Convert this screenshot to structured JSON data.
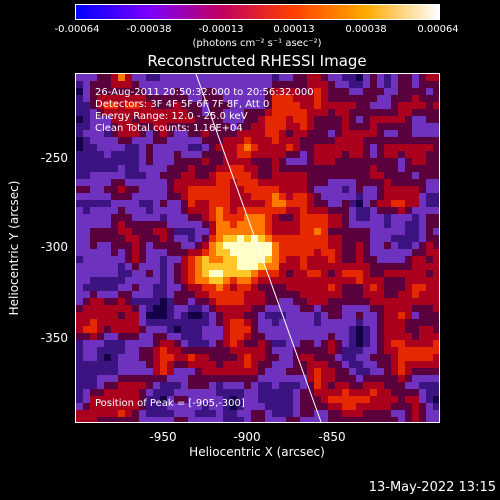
{
  "colorbar": {
    "ticks": [
      "-0.00064",
      "-0.00038",
      "-0.00013",
      "0.00013",
      "0.00038",
      "0.00064"
    ],
    "units_label": "(photons cm⁻² s⁻¹ asec⁻²)",
    "colors": [
      "#0000ff",
      "#7a00ff",
      "#c00060",
      "#ff4000",
      "#ffaa00",
      "#ffffff"
    ]
  },
  "title": "Reconstructed RHESSI Image",
  "info": {
    "line1": "26-Aug-2011 20:50:32.000 to 20:56:32.000",
    "line2": "Detectors: 3F 4F 5F 6F 7F 8F, Att 0",
    "line3": "Energy Range: 12.0 - 25.0 keV",
    "line4": "Clean     Total counts: 1.16E+04"
  },
  "peak_text": "Position of Peak = [-905,-300]",
  "axes": {
    "x_ticks": [
      "-950",
      "-900",
      "-850"
    ],
    "y_ticks": [
      "-250",
      "-300",
      "-350"
    ],
    "xlabel": "Heliocentric X (arcsec)",
    "ylabel": "Heliocentric Y (arcsec)"
  },
  "footer_date": "13-May-2022 13:15"
}
